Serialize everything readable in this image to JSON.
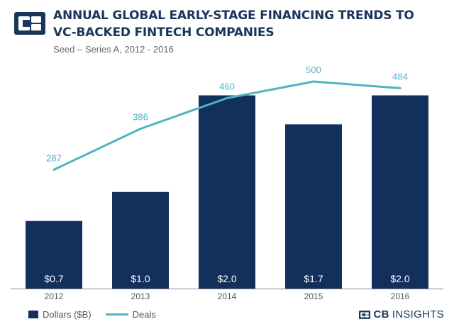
{
  "header": {
    "title_line1": "ANNUAL GLOBAL EARLY-STAGE FINANCING TRENDS TO",
    "title_line2": "VC-BACKED FINTECH COMPANIES",
    "subtitle": "Seed – Series A, 2012 - 2016"
  },
  "colors": {
    "bar": "#132f5c",
    "line": "#4fb3c4",
    "title": "#1b365d",
    "axis": "#888888"
  },
  "chart_data": {
    "type": "bar",
    "categories": [
      "2012",
      "2013",
      "2014",
      "2015",
      "2016"
    ],
    "series": [
      {
        "name": "Dollars ($B)",
        "type": "bar",
        "axis": "left",
        "values": [
          0.7,
          1.0,
          2.0,
          1.7,
          2.0
        ],
        "labels": [
          "$0.7",
          "$1.0",
          "$2.0",
          "$1.7",
          "$2.0"
        ]
      },
      {
        "name": "Deals",
        "type": "line",
        "axis": "right",
        "values": [
          287,
          386,
          460,
          500,
          484
        ],
        "labels": [
          "287",
          "386",
          "460",
          "500",
          "484"
        ]
      }
    ],
    "dollars_axis_range": [
      0,
      2.4
    ],
    "deals_axis_range": [
      0,
      560
    ],
    "grid": false,
    "legend_position": "bottom-left"
  },
  "legend": {
    "bars_label": "Dollars ($B)",
    "line_label": "Deals"
  },
  "brand": {
    "strong": "CB",
    "light": "INSIGHTS"
  }
}
